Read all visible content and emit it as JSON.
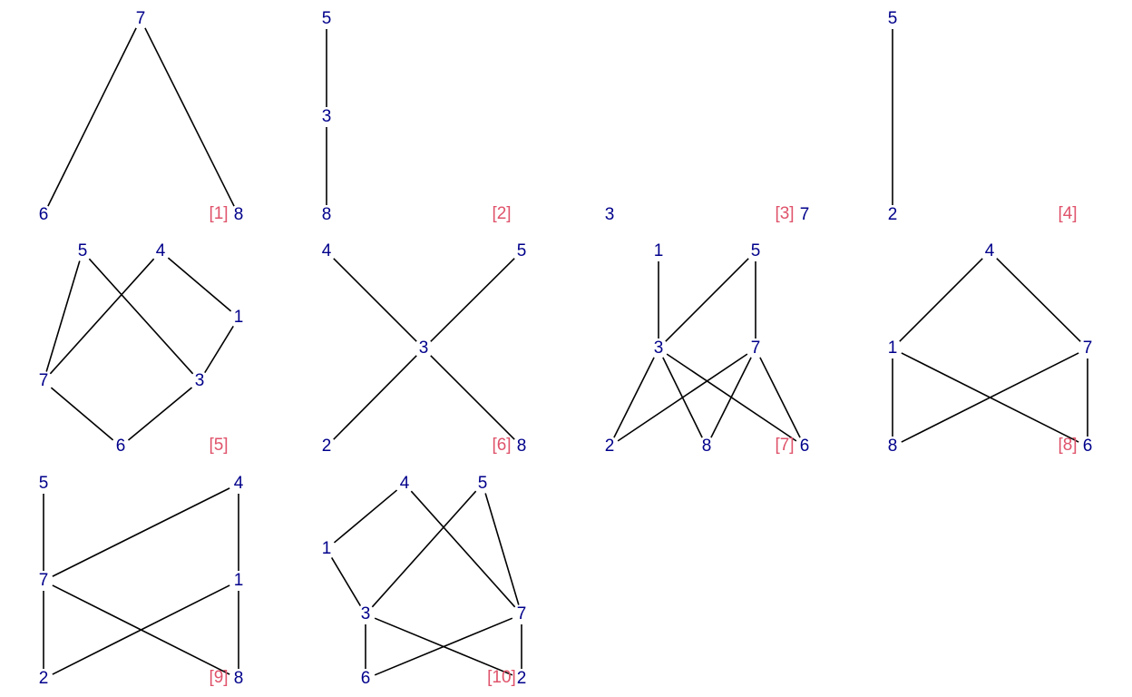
{
  "colors": {
    "node_label": "#00008b",
    "panel_tag": "#df536b",
    "edge": "#000000"
  },
  "panels": [
    {
      "tag": "[1]",
      "nodes": [
        {
          "id": "7",
          "label": "7"
        },
        {
          "id": "6",
          "label": "6"
        },
        {
          "id": "8",
          "label": "8"
        }
      ],
      "edges": [
        [
          "7",
          "6"
        ],
        [
          "7",
          "8"
        ]
      ]
    },
    {
      "tag": "[2]",
      "nodes": [
        {
          "id": "5",
          "label": "5"
        },
        {
          "id": "3",
          "label": "3"
        },
        {
          "id": "8",
          "label": "8"
        }
      ],
      "edges": [
        [
          "5",
          "3"
        ],
        [
          "3",
          "8"
        ]
      ]
    },
    {
      "tag": "[3]",
      "nodes": [
        {
          "id": "3",
          "label": "3"
        },
        {
          "id": "7",
          "label": "7"
        }
      ],
      "edges": []
    },
    {
      "tag": "[4]",
      "nodes": [
        {
          "id": "5",
          "label": "5"
        },
        {
          "id": "2",
          "label": "2"
        }
      ],
      "edges": [
        [
          "5",
          "2"
        ]
      ]
    },
    {
      "tag": "[5]",
      "nodes": [
        {
          "id": "5",
          "label": "5"
        },
        {
          "id": "4",
          "label": "4"
        },
        {
          "id": "1",
          "label": "1"
        },
        {
          "id": "7",
          "label": "7"
        },
        {
          "id": "3",
          "label": "3"
        },
        {
          "id": "6",
          "label": "6"
        }
      ],
      "edges": [
        [
          "5",
          "7"
        ],
        [
          "5",
          "3"
        ],
        [
          "4",
          "7"
        ],
        [
          "4",
          "1"
        ],
        [
          "1",
          "3"
        ],
        [
          "7",
          "6"
        ],
        [
          "3",
          "6"
        ]
      ]
    },
    {
      "tag": "[6]",
      "nodes": [
        {
          "id": "4",
          "label": "4"
        },
        {
          "id": "5",
          "label": "5"
        },
        {
          "id": "3",
          "label": "3"
        },
        {
          "id": "2",
          "label": "2"
        },
        {
          "id": "8",
          "label": "8"
        }
      ],
      "edges": [
        [
          "4",
          "3"
        ],
        [
          "5",
          "3"
        ],
        [
          "3",
          "2"
        ],
        [
          "3",
          "8"
        ]
      ]
    },
    {
      "tag": "[7]",
      "nodes": [
        {
          "id": "1",
          "label": "1"
        },
        {
          "id": "5",
          "label": "5"
        },
        {
          "id": "3",
          "label": "3"
        },
        {
          "id": "7",
          "label": "7"
        },
        {
          "id": "2",
          "label": "2"
        },
        {
          "id": "8",
          "label": "8"
        },
        {
          "id": "6",
          "label": "6"
        }
      ],
      "edges": [
        [
          "1",
          "3"
        ],
        [
          "5",
          "3"
        ],
        [
          "5",
          "7"
        ],
        [
          "3",
          "2"
        ],
        [
          "3",
          "8"
        ],
        [
          "3",
          "6"
        ],
        [
          "7",
          "2"
        ],
        [
          "7",
          "8"
        ],
        [
          "7",
          "6"
        ]
      ]
    },
    {
      "tag": "[8]",
      "nodes": [
        {
          "id": "4",
          "label": "4"
        },
        {
          "id": "1",
          "label": "1"
        },
        {
          "id": "7",
          "label": "7"
        },
        {
          "id": "8",
          "label": "8"
        },
        {
          "id": "6",
          "label": "6"
        }
      ],
      "edges": [
        [
          "4",
          "1"
        ],
        [
          "4",
          "7"
        ],
        [
          "1",
          "8"
        ],
        [
          "1",
          "6"
        ],
        [
          "7",
          "8"
        ],
        [
          "7",
          "6"
        ]
      ]
    },
    {
      "tag": "[9]",
      "nodes": [
        {
          "id": "5",
          "label": "5"
        },
        {
          "id": "4",
          "label": "4"
        },
        {
          "id": "7",
          "label": "7"
        },
        {
          "id": "1",
          "label": "1"
        },
        {
          "id": "2",
          "label": "2"
        },
        {
          "id": "8",
          "label": "8"
        }
      ],
      "edges": [
        [
          "5",
          "7"
        ],
        [
          "4",
          "7"
        ],
        [
          "4",
          "1"
        ],
        [
          "7",
          "2"
        ],
        [
          "7",
          "8"
        ],
        [
          "1",
          "2"
        ],
        [
          "1",
          "8"
        ]
      ]
    },
    {
      "tag": "[10]",
      "nodes": [
        {
          "id": "4",
          "label": "4"
        },
        {
          "id": "5",
          "label": "5"
        },
        {
          "id": "1",
          "label": "1"
        },
        {
          "id": "3",
          "label": "3"
        },
        {
          "id": "7",
          "label": "7"
        },
        {
          "id": "6",
          "label": "6"
        },
        {
          "id": "2",
          "label": "2"
        }
      ],
      "edges": [
        [
          "4",
          "1"
        ],
        [
          "4",
          "7"
        ],
        [
          "5",
          "3"
        ],
        [
          "5",
          "7"
        ],
        [
          "1",
          "3"
        ],
        [
          "3",
          "6"
        ],
        [
          "3",
          "2"
        ],
        [
          "7",
          "6"
        ],
        [
          "7",
          "2"
        ]
      ]
    }
  ]
}
